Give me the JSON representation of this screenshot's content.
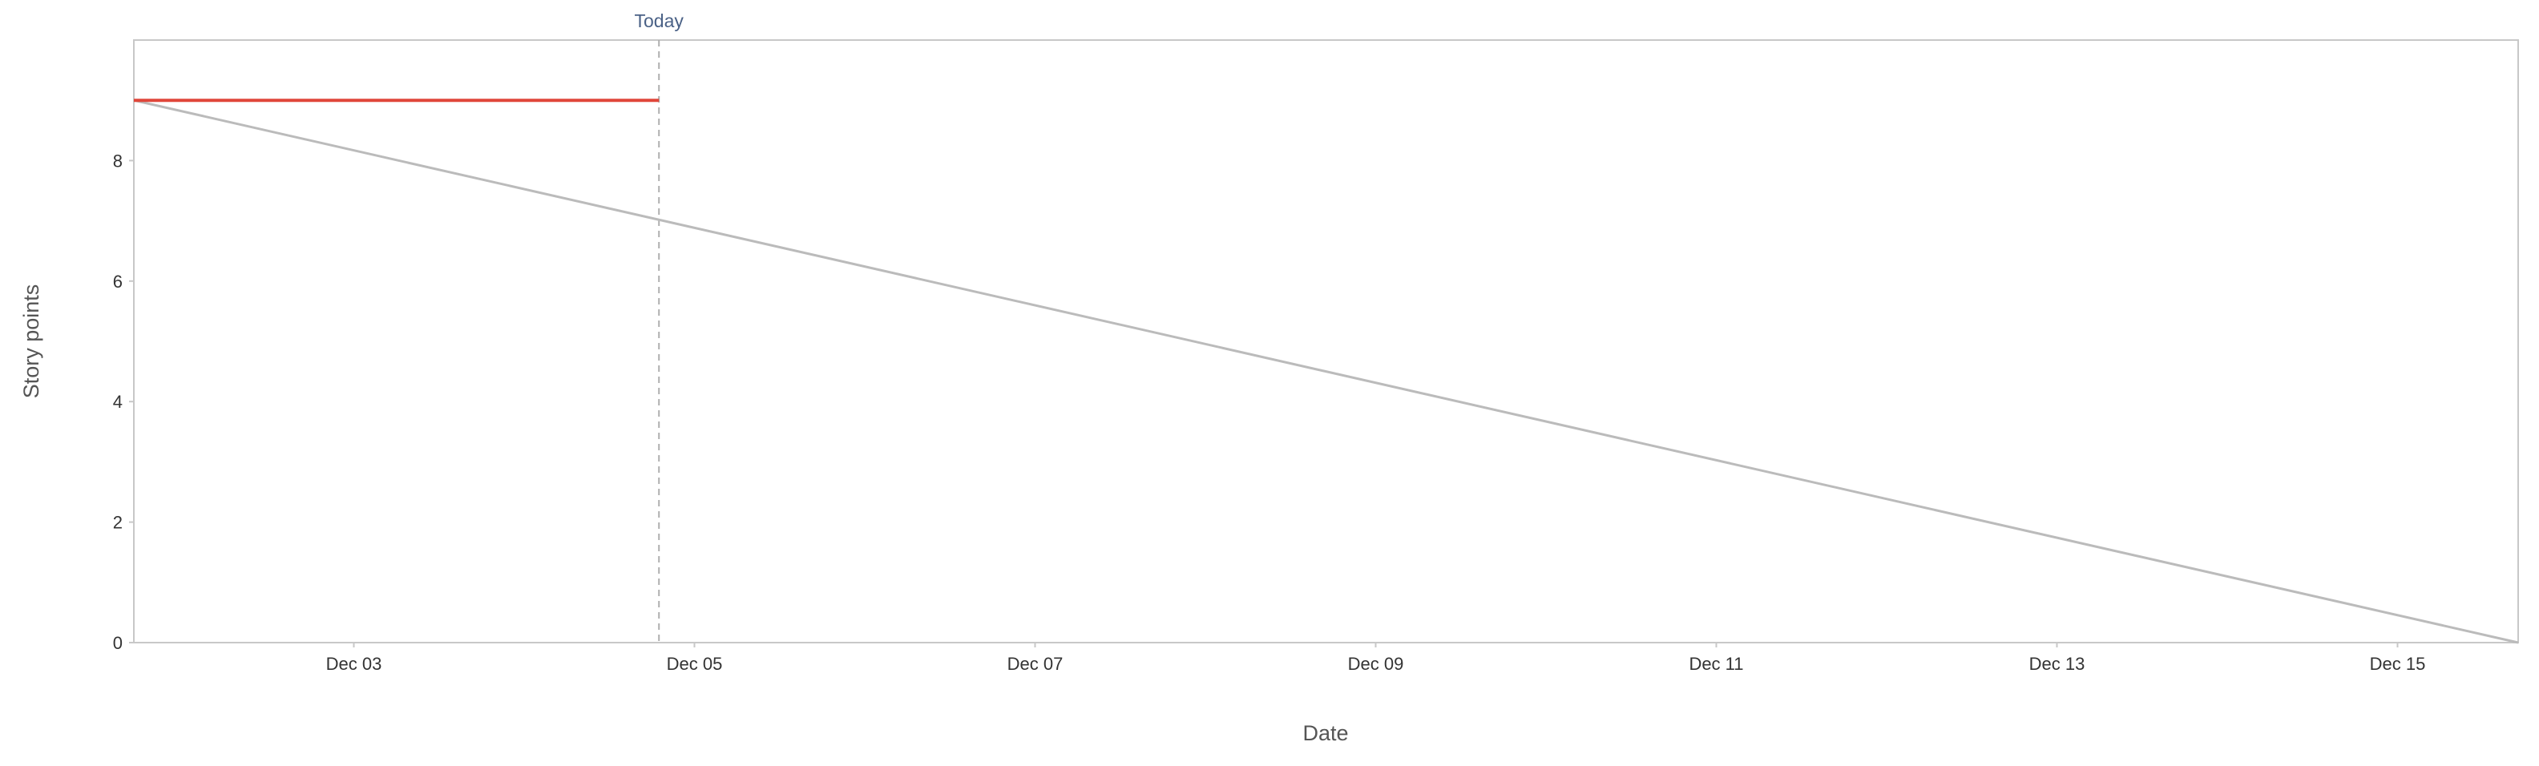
{
  "chart_data": {
    "type": "line",
    "title": "",
    "xlabel": "Date",
    "ylabel": "Story points",
    "x_ticks": [
      "Dec 03",
      "Dec 05",
      "Dec 07",
      "Dec 09",
      "Dec 11",
      "Dec 13",
      "Dec 15"
    ],
    "y_ticks": [
      "0",
      "2",
      "4",
      "6",
      "8"
    ],
    "xlim": [
      "Dec 01 17:00",
      "Dec 15 17:00"
    ],
    "ylim": [
      0,
      10
    ],
    "grid": false,
    "series": [
      {
        "color": "#bbbbbb",
        "points": [
          {
            "x": "Dec 01 17:00",
            "y": 9
          },
          {
            "x": "Dec 15 17:00",
            "y": 0
          }
        ]
      },
      {
        "color": "#e0463a",
        "points": [
          {
            "x": "Dec 01 17:00",
            "y": 9
          },
          {
            "x": "Dec 04 19:00",
            "y": 9
          }
        ]
      }
    ],
    "annotations": [
      {
        "type": "vline",
        "x": "Dec 04 19:00",
        "label": "Today",
        "color": "#4a6186"
      }
    ]
  }
}
